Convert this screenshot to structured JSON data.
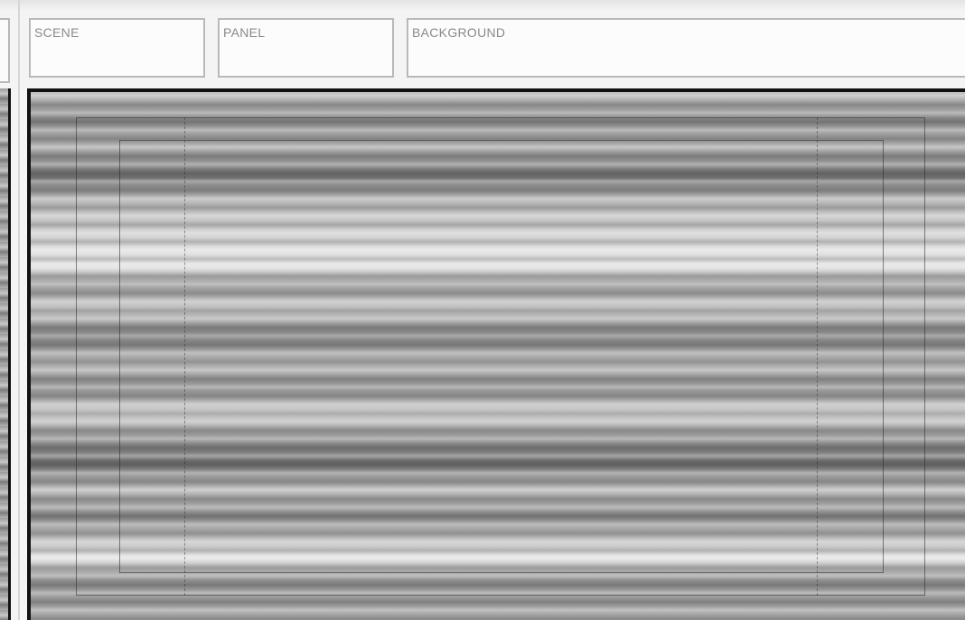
{
  "fields": {
    "scene": {
      "label": "SCENE",
      "value": ""
    },
    "panel": {
      "label": "PANEL",
      "value": ""
    },
    "background": {
      "label": "BACKGROUND",
      "value": ""
    }
  },
  "colors": {
    "panel_border": "#111111",
    "field_border": "#b9b9b9",
    "label_text": "#8a8a8a"
  },
  "panel": {
    "fill": "gray horizontal-streak texture"
  }
}
